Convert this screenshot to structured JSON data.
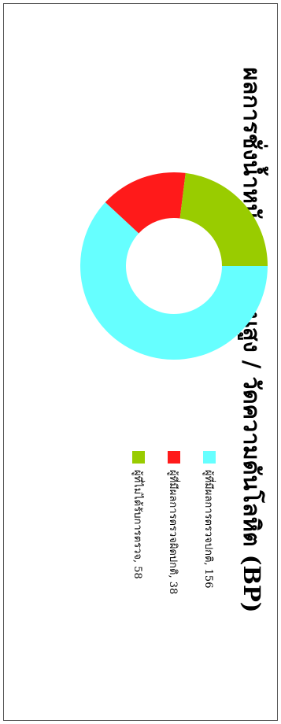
{
  "chart_data": {
    "type": "pie",
    "subtype": "donut",
    "title": "ผลการชั่งน้ำหนัก / วัดส่วนสูง / วัดความดันโลหิต (BP)",
    "orientation": "rotated 90° counter-clockwise",
    "legend_position": "right",
    "series": [
      {
        "name": "ผู้ที่มีผลการตรวจปกติ",
        "value": 156,
        "label": "ผู้ที่มีผลการตรวจปกติ, 156",
        "color": "#66ffff"
      },
      {
        "name": "ผู้ที่มีผลการตรวจผิดปกติ",
        "value": 38,
        "label": "ผู้ที่มีผลการตรวจผิดปกติ, 38",
        "color": "#ff1a1a"
      },
      {
        "name": "ผู้ที่ไม่ได้รับการตรวจ",
        "value": 58,
        "label": "ผู้ที่ไม่ได้รับการตรวจ, 58",
        "color": "#99cc00"
      }
    ]
  }
}
